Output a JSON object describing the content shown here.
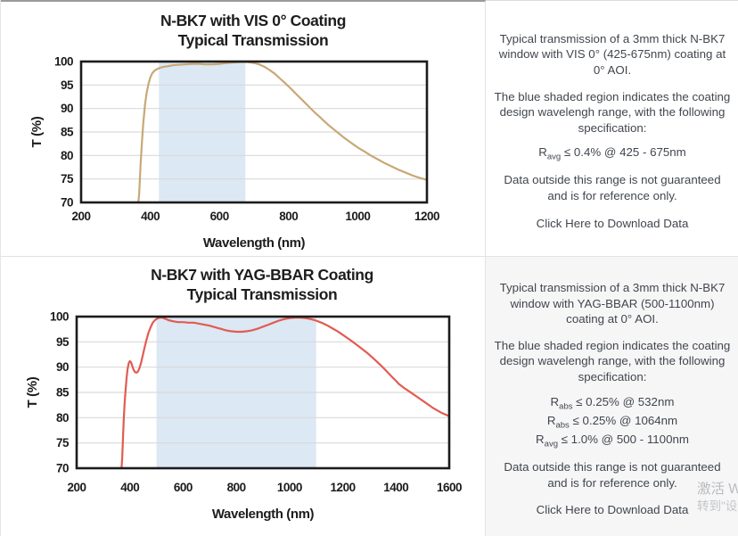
{
  "sections": [
    {
      "title_line1": "N-BK7 with VIS 0° Coating",
      "title_line2": "Typical Transmission",
      "description": "Typical transmission of a 3mm thick N-BK7 window with VIS 0° (425-675nm) coating at 0° AOI.",
      "shaded_note": "The blue shaded region indicates the coating design wavelengh range, with the following specification:",
      "specs": [
        {
          "base": "R",
          "sub": "avg",
          "rest": " ≤ 0.4% @ 425 - 675nm"
        }
      ],
      "disclaimer": "Data outside this range is not guaranteed and is for reference only.",
      "link_label": "Click Here to Download Data"
    },
    {
      "title_line1": "N-BK7 with YAG-BBAR Coating",
      "title_line2": "Typical Transmission",
      "description": "Typical transmission of a 3mm thick N-BK7 window with YAG-BBAR (500-1100nm) coating at 0° AOI.",
      "shaded_note": "The blue shaded region indicates the coating design wavelengh range, with the following specification:",
      "specs": [
        {
          "base": "R",
          "sub": "abs",
          "rest": " ≤ 0.25% @ 532nm"
        },
        {
          "base": "R",
          "sub": "abs",
          "rest": " ≤ 0.25% @ 1064nm"
        },
        {
          "base": "R",
          "sub": "avg",
          "rest": " ≤ 1.0% @ 500 - 1100nm"
        }
      ],
      "disclaimer": "Data outside this range is not guaranteed and is for reference only.",
      "link_label": "Click Here to Download Data"
    }
  ],
  "watermark": {
    "line1": "激活 W",
    "line2": "转到\"设"
  },
  "chart_data": [
    {
      "type": "line",
      "title": "N-BK7 with VIS 0° Coating Typical Transmission",
      "xlabel": "Wavelength (nm)",
      "ylabel": "T (%)",
      "xlim": [
        200,
        1200
      ],
      "ylim": [
        70,
        100
      ],
      "xticks": [
        200,
        400,
        600,
        800,
        1000,
        1200
      ],
      "yticks": [
        70,
        75,
        80,
        85,
        90,
        95,
        100
      ],
      "grid": "horizontal",
      "band_x": [
        425,
        675
      ],
      "band_color": "#dce8f4",
      "grid_color": "#d9d9d9",
      "line_color": "#c9a876",
      "series": [
        {
          "name": "Typical Transmission",
          "points": [
            [
              365,
              69.5
            ],
            [
              368,
              72
            ],
            [
              372,
              78
            ],
            [
              376,
              83
            ],
            [
              380,
              87
            ],
            [
              385,
              91
            ],
            [
              390,
              93.5
            ],
            [
              395,
              95.3
            ],
            [
              400,
              96.6
            ],
            [
              405,
              97.4
            ],
            [
              410,
              97.9
            ],
            [
              415,
              98.2
            ],
            [
              420,
              98.4
            ],
            [
              430,
              98.7
            ],
            [
              440,
              98.9
            ],
            [
              450,
              99
            ],
            [
              465,
              99.2
            ],
            [
              480,
              99.3
            ],
            [
              500,
              99.4
            ],
            [
              520,
              99.5
            ],
            [
              540,
              99.5
            ],
            [
              560,
              99.4
            ],
            [
              580,
              99.4
            ],
            [
              600,
              99.5
            ],
            [
              620,
              99.7
            ],
            [
              640,
              99.8
            ],
            [
              660,
              99.9
            ],
            [
              680,
              99.9
            ],
            [
              700,
              99.7
            ],
            [
              715,
              99.4
            ],
            [
              730,
              98.9
            ],
            [
              745,
              98.2
            ],
            [
              760,
              97.4
            ],
            [
              775,
              96.4
            ],
            [
              790,
              95.4
            ],
            [
              800,
              94.7
            ],
            [
              815,
              93.6
            ],
            [
              830,
              92.5
            ],
            [
              845,
              91.4
            ],
            [
              860,
              90.3
            ],
            [
              875,
              89.2
            ],
            [
              890,
              88.2
            ],
            [
              900,
              87.5
            ],
            [
              915,
              86.5
            ],
            [
              930,
              85.6
            ],
            [
              945,
              84.7
            ],
            [
              960,
              83.8
            ],
            [
              975,
              83
            ],
            [
              990,
              82.2
            ],
            [
              1000,
              81.7
            ],
            [
              1020,
              80.8
            ],
            [
              1040,
              79.9
            ],
            [
              1060,
              79.1
            ],
            [
              1080,
              78.3
            ],
            [
              1100,
              77.6
            ],
            [
              1120,
              76.9
            ],
            [
              1140,
              76.3
            ],
            [
              1160,
              75.7
            ],
            [
              1180,
              75.2
            ],
            [
              1200,
              74.8
            ]
          ]
        }
      ]
    },
    {
      "type": "line",
      "title": "N-BK7 with YAG-BBAR Coating Typical Transmission",
      "xlabel": "Wavelength (nm)",
      "ylabel": "T (%)",
      "xlim": [
        200,
        1600
      ],
      "ylim": [
        70,
        100
      ],
      "xticks": [
        200,
        400,
        600,
        800,
        1000,
        1200,
        1400,
        1600
      ],
      "yticks": [
        70,
        75,
        80,
        85,
        90,
        95,
        100
      ],
      "grid": "horizontal",
      "band_x": [
        500,
        1100
      ],
      "band_color": "#dce8f4",
      "grid_color": "#d9d9d9",
      "line_color": "#e25b51",
      "series": [
        {
          "name": "Typical Transmission",
          "points": [
            [
              368,
              69.5
            ],
            [
              371,
              72
            ],
            [
              374,
              76
            ],
            [
              377,
              79.5
            ],
            [
              380,
              82.5
            ],
            [
              384,
              85.5
            ],
            [
              388,
              88
            ],
            [
              392,
              89.8
            ],
            [
              396,
              90.8
            ],
            [
              400,
              91.2
            ],
            [
              404,
              91
            ],
            [
              408,
              90.4
            ],
            [
              413,
              89.6
            ],
            [
              418,
              89.1
            ],
            [
              424,
              88.9
            ],
            [
              430,
              89.1
            ],
            [
              436,
              89.8
            ],
            [
              442,
              90.9
            ],
            [
              448,
              92.2
            ],
            [
              455,
              93.8
            ],
            [
              462,
              95.3
            ],
            [
              470,
              96.8
            ],
            [
              478,
              97.9
            ],
            [
              486,
              98.8
            ],
            [
              494,
              99.3
            ],
            [
              502,
              99.6
            ],
            [
              512,
              99.8
            ],
            [
              522,
              99.8
            ],
            [
              532,
              99.6
            ],
            [
              545,
              99.3
            ],
            [
              560,
              99.1
            ],
            [
              580,
              98.9
            ],
            [
              600,
              98.9
            ],
            [
              620,
              98.8
            ],
            [
              640,
              98.8
            ],
            [
              660,
              98.6
            ],
            [
              680,
              98.4
            ],
            [
              700,
              98.2
            ],
            [
              720,
              97.9
            ],
            [
              740,
              97.6
            ],
            [
              760,
              97.3
            ],
            [
              780,
              97.1
            ],
            [
              800,
              97
            ],
            [
              820,
              97
            ],
            [
              840,
              97.1
            ],
            [
              860,
              97.3
            ],
            [
              880,
              97.6
            ],
            [
              900,
              98
            ],
            [
              920,
              98.4
            ],
            [
              940,
              98.8
            ],
            [
              960,
              99.2
            ],
            [
              980,
              99.5
            ],
            [
              1000,
              99.7
            ],
            [
              1020,
              99.8
            ],
            [
              1040,
              99.8
            ],
            [
              1060,
              99.7
            ],
            [
              1080,
              99.5
            ],
            [
              1100,
              99.2
            ],
            [
              1120,
              98.8
            ],
            [
              1140,
              98.3
            ],
            [
              1160,
              97.7
            ],
            [
              1180,
              97.1
            ],
            [
              1200,
              96.4
            ],
            [
              1230,
              95.3
            ],
            [
              1260,
              94.1
            ],
            [
              1290,
              92.9
            ],
            [
              1320,
              91.5
            ],
            [
              1350,
              90
            ],
            [
              1370,
              88.9
            ],
            [
              1390,
              87.8
            ],
            [
              1400,
              87.3
            ],
            [
              1410,
              86.7
            ],
            [
              1430,
              85.9
            ],
            [
              1450,
              85.2
            ],
            [
              1480,
              84.1
            ],
            [
              1510,
              83
            ],
            [
              1540,
              81.9
            ],
            [
              1570,
              81
            ],
            [
              1600,
              80.3
            ]
          ]
        }
      ]
    }
  ]
}
